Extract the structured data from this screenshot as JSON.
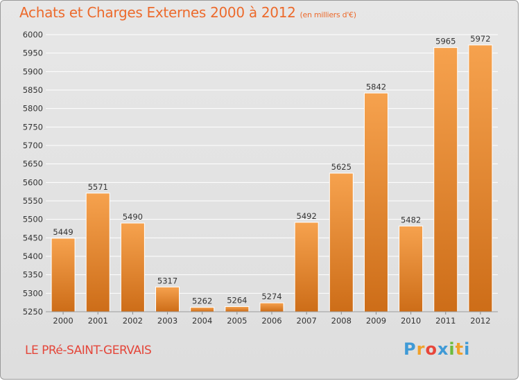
{
  "title": "Achats et Charges Externes 2000 à 2012",
  "unit": "(en milliers d'€)",
  "city": "LE PRé-SAINT-GERVAIS",
  "logo": {
    "letters": [
      "P",
      "r",
      "o",
      "x",
      "i",
      "t",
      "i"
    ],
    "colors": [
      "#3f9ad6",
      "#f0a12a",
      "#e8463a",
      "#3f9ad6",
      "#6cbb3c",
      "#f0a12a",
      "#3f9ad6"
    ]
  },
  "colors": {
    "bar_light": "#f6a24e",
    "bar_dark": "#cd6d18",
    "grid": "#ffffff",
    "title": "#ec6a2c",
    "city": "#e4463a"
  },
  "chart_data": {
    "type": "bar",
    "title": "Achats et Charges Externes 2000 à 2012",
    "categories": [
      "2000",
      "2001",
      "2002",
      "2003",
      "2004",
      "2005",
      "2006",
      "2007",
      "2008",
      "2009",
      "2010",
      "2011",
      "2012"
    ],
    "values": [
      5449,
      5571,
      5490,
      5317,
      5262,
      5264,
      5274,
      5492,
      5625,
      5842,
      5482,
      5965,
      5972
    ],
    "ylim": [
      5250,
      6000
    ],
    "yticks": [
      5250,
      5300,
      5350,
      5400,
      5450,
      5500,
      5550,
      5600,
      5650,
      5700,
      5750,
      5800,
      5850,
      5900,
      5950,
      6000
    ],
    "grid": true,
    "xlabel": "",
    "ylabel": ""
  }
}
